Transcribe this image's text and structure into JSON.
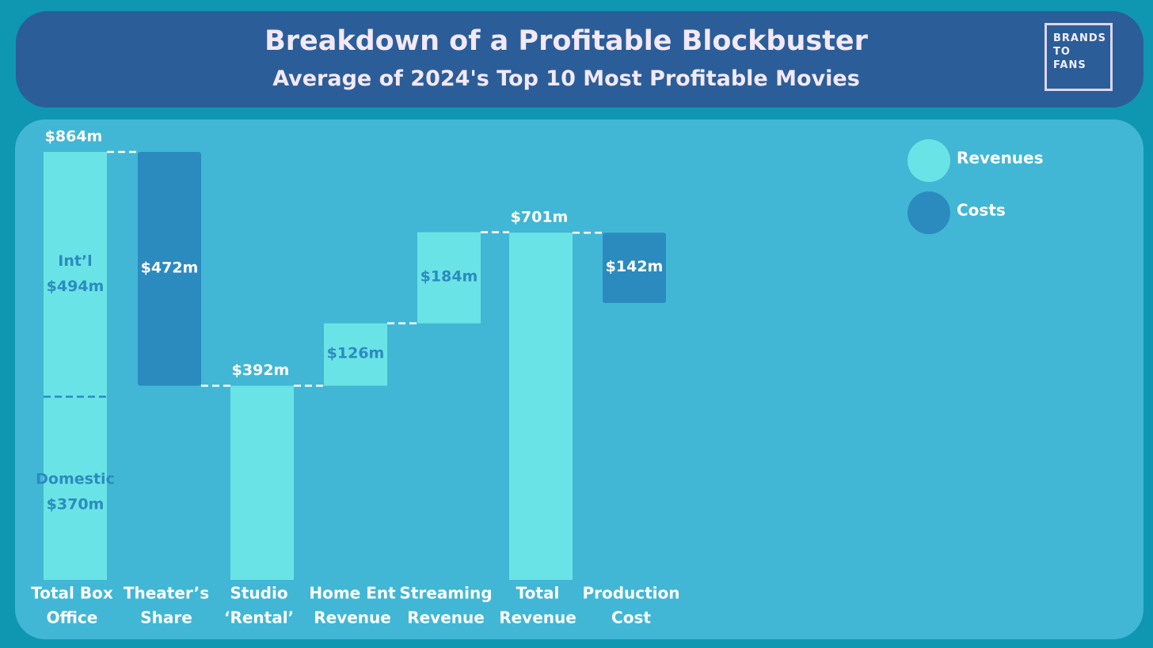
{
  "header": {
    "title": "Breakdown of a Profitable Blockbuster",
    "subtitle": "Average of 2024's Top 10 Most Profitable Movies"
  },
  "logo": {
    "lines": [
      "BRANDS",
      "TO",
      "FANS"
    ]
  },
  "legend": [
    {
      "label": "Revenues",
      "color": "#6ae3e6"
    },
    {
      "label": "Costs",
      "color": "#2b8bbf"
    }
  ],
  "colors": {
    "page_bg": "#0f97b1",
    "header_bg": "#2b5e98",
    "panel_bg": "#41b7d5",
    "revenue": "#6ae3e6",
    "cost": "#2b8bbf",
    "inner_label": "#2b8bbf",
    "white": "#ffffff"
  },
  "chart_data": {
    "type": "waterfall",
    "title": "Breakdown of a Profitable Blockbuster",
    "subtitle": "Average of 2024's Top 10 Most Profitable Movies",
    "unit": "$m",
    "bars": [
      {
        "category": [
          "Total Box",
          "Office"
        ],
        "kind": "revenue",
        "start": 0,
        "end": 864,
        "top_label": "$864m",
        "segments": [
          {
            "name": "Domestic",
            "value": 370,
            "label": [
              "Domestic",
              "$370m"
            ]
          },
          {
            "name": "Int'l",
            "value": 494,
            "label": [
              "Int’l",
              "$494m"
            ]
          }
        ]
      },
      {
        "category": [
          "Theater’s",
          "Share"
        ],
        "kind": "cost",
        "start": 392,
        "end": 864,
        "value": 472,
        "inner_label": "$472m"
      },
      {
        "category": [
          "Studio",
          "‘Rental’"
        ],
        "kind": "revenue",
        "start": 0,
        "end": 392,
        "top_label": "$392m"
      },
      {
        "category": [
          "Home Ent",
          "Revenue"
        ],
        "kind": "revenue",
        "start": 392,
        "end": 518,
        "value": 126,
        "inner_label": "$126m"
      },
      {
        "category": [
          "Streaming",
          "Revenue"
        ],
        "kind": "revenue",
        "start": 518,
        "end": 702,
        "value": 184,
        "inner_label": "$184m"
      },
      {
        "category": [
          "Total",
          "Revenue"
        ],
        "kind": "revenue",
        "start": 0,
        "end": 701,
        "top_label": "$701m"
      },
      {
        "category": [
          "Production",
          "Cost"
        ],
        "kind": "cost",
        "start": 559,
        "end": 701,
        "value": 142,
        "inner_label": "$142m"
      }
    ],
    "ylim": [
      0,
      864
    ],
    "legend_position": "top-right"
  }
}
